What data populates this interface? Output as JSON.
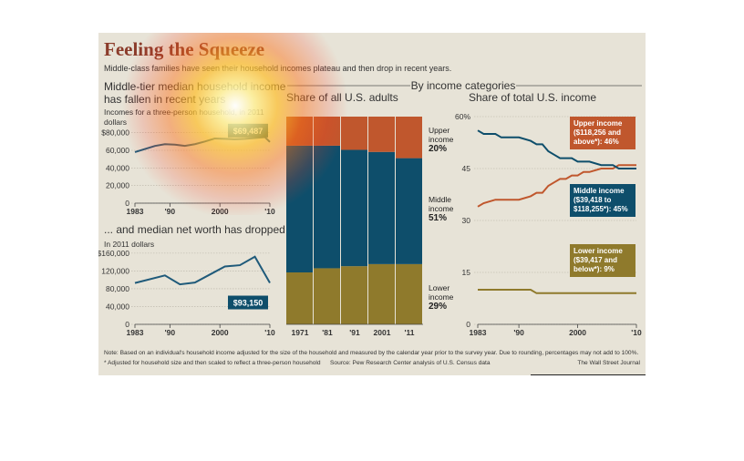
{
  "header": {
    "title": "Feeling the Squeeze",
    "subtitle": "Middle-class families have seen their household incomes plateau and then drop in recent years."
  },
  "left_top": {
    "heading_line1": "Middle-tier median household income",
    "heading_line2": "has fallen in recent years",
    "note_line1": "Incomes for a three-person household, in 2011",
    "note_line2": "dollars"
  },
  "left_bottom": {
    "heading": "... and median net worth has dropped",
    "note": "In 2011 dollars"
  },
  "categories_header": "By income categories",
  "footnotes": {
    "note": "Note: Based on an individual's household income adjusted for the size of the household and measured by the calendar year prior to the survey year. Due to rounding, percentages may not add to 100%.",
    "adjust": "* Adjusted for household size and then scaled to reflect a three-person household",
    "source": "Source: Pew Research Center analysis of U.S. Census data",
    "credit": "The Wall Street Journal"
  },
  "colors": {
    "line": "#1f5a7a",
    "upper": "#c0572d",
    "middle": "#0e4e6b",
    "lower": "#8f7a2c",
    "background": "#e7e3d7"
  },
  "chart_data": [
    {
      "id": "income",
      "type": "line",
      "x": [
        1983,
        1985,
        1987,
        1989,
        1991,
        1993,
        1995,
        1997,
        1999,
        2001,
        2003,
        2005,
        2007,
        2009,
        2010
      ],
      "values": [
        58000,
        61500,
        65000,
        67000,
        66500,
        65000,
        67000,
        70000,
        73500,
        73000,
        72500,
        73000,
        74000,
        75000,
        69487
      ],
      "xticks": [
        "1983",
        "'90",
        "2000",
        "'10"
      ],
      "xtick_values": [
        1983,
        1990,
        2000,
        2010
      ],
      "yticks": [
        "$80,000",
        "60,000",
        "40,000",
        "20,000",
        "0"
      ],
      "ytick_values": [
        80000,
        60000,
        40000,
        20000,
        0
      ],
      "ylim": [
        0,
        90000
      ],
      "xlim": [
        1983,
        2010
      ],
      "callout": "$69,487"
    },
    {
      "id": "networth",
      "type": "line",
      "x": [
        1983,
        1989,
        1992,
        1995,
        1998,
        2001,
        2004,
        2007,
        2010
      ],
      "values": [
        93000,
        110000,
        90000,
        94000,
        112000,
        130000,
        133000,
        152000,
        93150
      ],
      "xticks": [
        "1983",
        "'90",
        "2000",
        "'10"
      ],
      "xtick_values": [
        1983,
        1990,
        2000,
        2010
      ],
      "yticks": [
        "$160,000",
        "120,000",
        "80,000",
        "40,000",
        "0"
      ],
      "ytick_values": [
        160000,
        120000,
        80000,
        40000,
        0
      ],
      "ylim": [
        0,
        170000
      ],
      "xlim": [
        1983,
        2010
      ],
      "callout": "$93,150"
    },
    {
      "id": "adults",
      "type": "bar",
      "title": "Share of all U.S. adults",
      "categories": [
        "1971",
        "'81",
        "'91",
        "2001",
        "'11"
      ],
      "series": [
        {
          "name": "Lower",
          "values": [
            25,
            27,
            28,
            29,
            29
          ]
        },
        {
          "name": "Middle",
          "values": [
            61,
            59,
            56,
            54,
            51
          ]
        },
        {
          "name": "Upper",
          "values": [
            14,
            14,
            16,
            17,
            20
          ]
        }
      ],
      "ylim": [
        0,
        100
      ],
      "labels": {
        "upper": [
          "Upper",
          "income",
          "20%"
        ],
        "middle": [
          "Middle",
          "income",
          "51%"
        ],
        "lower": [
          "Lower",
          "income",
          "29%"
        ]
      }
    },
    {
      "id": "share",
      "type": "line",
      "title": "Share of total U.S. income",
      "x": [
        1983,
        1984,
        1986,
        1987,
        1988,
        1989,
        1990,
        1992,
        1993,
        1994,
        1995,
        1996,
        1997,
        1998,
        1999,
        2000,
        2001,
        2002,
        2004,
        2005,
        2006,
        2007,
        2008,
        2009,
        2010
      ],
      "series": [
        {
          "name": "Upper income",
          "values": [
            34,
            35,
            36,
            36,
            36,
            36,
            36,
            37,
            38,
            38,
            40,
            41,
            42,
            42,
            43,
            43,
            44,
            44,
            45,
            45,
            45,
            46,
            46,
            46,
            46
          ]
        },
        {
          "name": "Middle income",
          "values": [
            56,
            55,
            55,
            54,
            54,
            54,
            54,
            53,
            52,
            52,
            50,
            49,
            48,
            48,
            48,
            47,
            47,
            47,
            46,
            46,
            46,
            45,
            45,
            45,
            45
          ]
        },
        {
          "name": "Lower income",
          "values": [
            10,
            10,
            10,
            10,
            10,
            10,
            10,
            10,
            9,
            9,
            9,
            9,
            9,
            9,
            9,
            9,
            9,
            9,
            9,
            9,
            9,
            9,
            9,
            9,
            9
          ]
        }
      ],
      "yticks": [
        "60%",
        "45",
        "30",
        "15",
        "0"
      ],
      "ytick_values": [
        60,
        45,
        30,
        15,
        0
      ],
      "xticks": [
        "1983",
        "'90",
        "2000",
        "'10"
      ],
      "xtick_values": [
        1983,
        1990,
        2000,
        2010
      ],
      "ylim": [
        0,
        60
      ],
      "xlim": [
        1983,
        2010
      ],
      "callouts": {
        "upper": [
          "Upper income",
          "($118,256 and",
          "above*): 46%"
        ],
        "middle": [
          "Middle income",
          "($39,418 to",
          "$118,255*): 45%"
        ],
        "lower": [
          "Lower income",
          "($39,417 and",
          "below*): 9%"
        ]
      }
    }
  ]
}
